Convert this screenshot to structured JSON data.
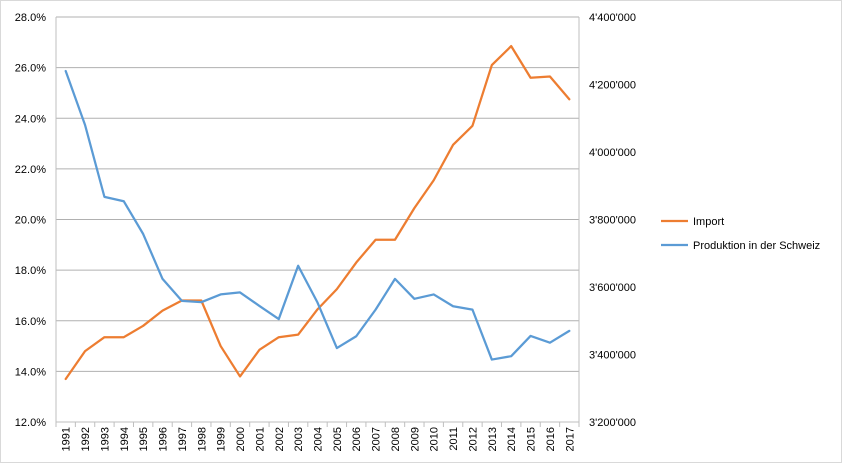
{
  "chart_data": {
    "type": "line",
    "title": "",
    "xlabel": "",
    "ylabel": "",
    "y2label": "",
    "grid": true,
    "legend_position": "right",
    "categories": [
      "1991",
      "1992",
      "1993",
      "1994",
      "1995",
      "1996",
      "1997",
      "1998",
      "1999",
      "2000",
      "2001",
      "2002",
      "2003",
      "2004",
      "2005",
      "2006",
      "2007",
      "2008",
      "2009",
      "2010",
      "2011",
      "2012",
      "2013",
      "2014",
      "2015",
      "2016",
      "2017"
    ],
    "y_axis": {
      "min": 0.12,
      "max": 0.28,
      "step": 0.02,
      "ticks": [
        "12.0%",
        "14.0%",
        "16.0%",
        "18.0%",
        "20.0%",
        "22.0%",
        "24.0%",
        "26.0%",
        "28.0%"
      ]
    },
    "y2_axis": {
      "min": 3200000,
      "max": 4400000,
      "step": 200000,
      "ticks": [
        "3'200'000",
        "3'400'000",
        "3'600'000",
        "3'800'000",
        "4'000'000",
        "4'200'000",
        "4'400'000"
      ]
    },
    "series": [
      {
        "name": "Import",
        "axis": "primary",
        "color": "#ED7D31",
        "values": [
          0.137,
          0.148,
          0.1535,
          0.1535,
          0.158,
          0.164,
          0.168,
          0.168,
          0.15,
          0.138,
          0.1485,
          0.1535,
          0.1545,
          0.1645,
          0.1725,
          0.183,
          0.192,
          0.192,
          0.2045,
          0.2155,
          0.2295,
          0.237,
          0.261,
          0.2685,
          0.256,
          0.2565,
          0.2475
        ]
      },
      {
        "name": "Produktion in der Schweiz",
        "axis": "secondary",
        "color": "#5B9BD5",
        "values": [
          4240000,
          4080000,
          3867000,
          3854000,
          3757000,
          3624000,
          3559000,
          3555000,
          3578000,
          3584000,
          3544000,
          3505000,
          3663000,
          3554000,
          3419000,
          3454000,
          3533000,
          3624000,
          3565000,
          3578000,
          3543000,
          3533000,
          3385000,
          3395000,
          3455000,
          3435000,
          3470000
        ]
      }
    ]
  }
}
